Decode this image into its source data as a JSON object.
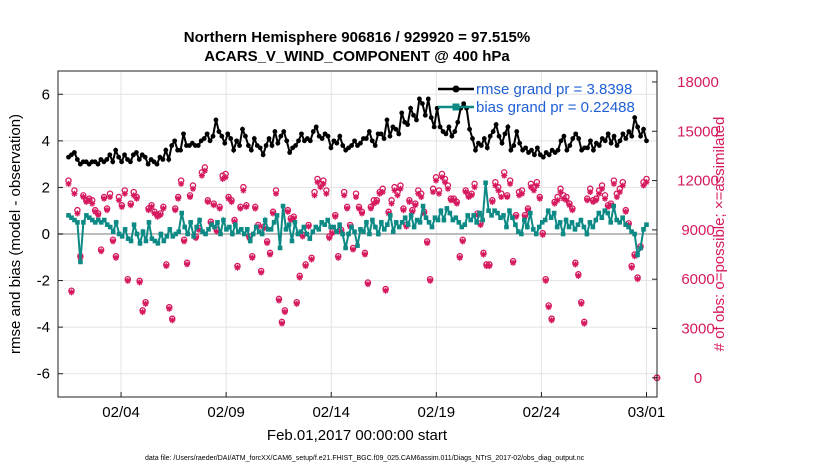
{
  "chart_data": {
    "type": "line",
    "title": "Northern Hemisphere 906816 / 929920 = 97.515%",
    "subtitle": "ACARS_V_WIND_COMPONENT @ 400 hPa",
    "xlabel": "Feb.01,2017 00:00:00 start",
    "ylabel_left": "rmse and bias (model - observation)",
    "ylabel_right": "# of obs: o=possible; ×=assimilated",
    "footnote": "data file: /Users/raeder/DAI/ATM_forcXX/CAM6_setup/f.e21.FHIST_BGC.f09_025.CAM6assim.011/Diags_NTrS_2017-02/obs_diag_output.nc",
    "x_tick_labels": [
      "02/04",
      "02/09",
      "02/14",
      "02/19",
      "02/24",
      "03/01"
    ],
    "x_tick_days": [
      3,
      8,
      13,
      18,
      23,
      28
    ],
    "xlim_days": [
      0,
      28.5
    ],
    "ylim_left": [
      -7,
      7
    ],
    "y_ticks_left": [
      -6,
      -4,
      -2,
      0,
      2,
      4,
      6
    ],
    "ylim_right": [
      -1167,
      18667
    ],
    "y_ticks_right": [
      0,
      3000,
      6000,
      9000,
      12000,
      15000,
      18000
    ],
    "grid": true,
    "legend_position": "top-right",
    "colors": {
      "rmse": "#000000",
      "bias": "#0d8a86",
      "obs": "#d6195f",
      "legend_text": "#1f5fd6",
      "zero_line": "#bdbdbd"
    },
    "series": [
      {
        "name": "rmse grand pr = 3.8398",
        "axis": "left",
        "marker": "filled-circle",
        "values": [
          3.3,
          3.4,
          3.5,
          3.2,
          3.0,
          3.1,
          3.1,
          3.0,
          3.1,
          3.1,
          3.0,
          3.2,
          3.1,
          3.2,
          3.4,
          3.1,
          3.6,
          3.3,
          3.1,
          3.4,
          3.2,
          3.1,
          3.4,
          3.5,
          3.2,
          3.4,
          3.3,
          3.0,
          3.2,
          3.1,
          3.0,
          3.3,
          3.2,
          3.6,
          3.2,
          3.8,
          4.0,
          3.6,
          3.6,
          4.3,
          3.8,
          3.8,
          3.9,
          3.8,
          3.8,
          4.0,
          4.1,
          4.3,
          4.0,
          4.2,
          4.9,
          4.4,
          4.2,
          3.9,
          4.3,
          4.1,
          3.6,
          4.0,
          3.8,
          4.5,
          4.2,
          3.8,
          3.6,
          4.1,
          3.8,
          3.7,
          3.4,
          3.8,
          4.1,
          3.8,
          4.4,
          3.9,
          4.2,
          4.4,
          4.0,
          3.5,
          3.7,
          3.8,
          4.0,
          4.3,
          4.0,
          4.1,
          4.0,
          4.4,
          4.6,
          4.2,
          4.1,
          4.3,
          4.2,
          3.7,
          4.0,
          3.9,
          4.2,
          3.8,
          3.6,
          3.7,
          3.8,
          4.0,
          3.8,
          3.9,
          4.1,
          4.1,
          4.4,
          4.0,
          3.8,
          4.3,
          4.3,
          4.1,
          4.9,
          4.2,
          4.6,
          4.5,
          4.3,
          5.2,
          4.8,
          4.7,
          5.4,
          5.1,
          4.9,
          5.8,
          5.6,
          5.1,
          5.8,
          5.0,
          4.6,
          5.4,
          4.6,
          4.4,
          4.3,
          4.6,
          4.2,
          4.4,
          4.8,
          5.4,
          5.6,
          5.4,
          4.5,
          4.1,
          3.6,
          3.9,
          3.8,
          4.1,
          3.7,
          4.2,
          4.4,
          4.7,
          4.2,
          3.9,
          4.3,
          4.6,
          3.6,
          3.8,
          4.4,
          3.9,
          3.6,
          3.7,
          3.5,
          3.6,
          3.4,
          3.7,
          3.4,
          3.3,
          3.5,
          3.4,
          3.6,
          3.5,
          3.6,
          4.0,
          4.2,
          3.6,
          3.8,
          4.1,
          4.3,
          4.1,
          3.6,
          3.7,
          3.7,
          4.0,
          3.6,
          3.9,
          3.8,
          4.1,
          4.0,
          4.3,
          3.9,
          4.2,
          3.8,
          4.0,
          4.3,
          4.1,
          4.4,
          4.2,
          5.0,
          4.6,
          4.2,
          4.5,
          4.0
        ]
      },
      {
        "name": "bias grand pr = 0.22488",
        "axis": "left",
        "marker": "filled-square",
        "values": [
          0.8,
          0.7,
          0.6,
          0.5,
          -1.2,
          0.5,
          0.8,
          0.7,
          0.6,
          0.5,
          0.6,
          0.5,
          0.6,
          0.4,
          0.3,
          0.1,
          0.5,
          0.0,
          -0.1,
          0.2,
          -0.2,
          -0.3,
          0.4,
          0.0,
          -0.4,
          0.1,
          -0.3,
          0.5,
          -0.2,
          -0.3,
          -0.4,
          0.0,
          -0.3,
          -0.1,
          0.2,
          -0.1,
          0.0,
          0.1,
          0.9,
          0.3,
          0.0,
          0.5,
          -0.1,
          0.3,
          0.6,
          0.1,
          0.0,
          0.2,
          0.4,
          0.3,
          0.5,
          0.0,
          0.6,
          0.2,
          0.3,
          0.0,
          0.4,
          0.1,
          0.2,
          0.0,
          0.2,
          -0.3,
          0.0,
          0.3,
          0.1,
          0.0,
          0.6,
          0.2,
          0.2,
          0.5,
          0.8,
          -0.6,
          1.2,
          0.2,
          0.4,
          -0.3,
          0.5,
          0.0,
          0.1,
          0.3,
          0.0,
          -0.2,
          0.1,
          0.3,
          0.2,
          0.5,
          0.4,
          0.6,
          0.3,
          0.3,
          0.1,
          0.4,
          0.0,
          -0.6,
          0.0,
          0.3,
          0.1,
          -0.5,
          0.2,
          0.1,
          0.5,
          0.0,
          0.6,
          0.3,
          0.0,
          0.5,
          0.2,
          0.4,
          0.8,
          0.1,
          0.5,
          0.3,
          0.5,
          0.7,
          0.4,
          0.8,
          0.3,
          0.6,
          0.5,
          1.2,
          0.7,
          0.5,
          0.3,
          0.7,
          0.6,
          1.0,
          0.6,
          1.1,
          0.9,
          0.6,
          0.7,
          0.5,
          0.3,
          0.4,
          0.8,
          0.6,
          0.8,
          0.5,
          0.9,
          0.6,
          2.2,
          1.0,
          0.8,
          1.0,
          0.9,
          0.7,
          0.8,
          0.3,
          1.0,
          0.7,
          0.4,
          0.1,
          0.0,
          0.6,
          0.3,
          0.9,
          0.2,
          0.0,
          0.3,
          0.5,
          0.6,
          1.0,
          0.7,
          0.9,
          0.3,
          0.5,
          0.0,
          0.6,
          0.3,
          0.5,
          0.2,
          0.4,
          0.6,
          0.3,
          0.0,
          0.5,
          0.3,
          0.6,
          0.9,
          0.7,
          1.0,
          0.9,
          0.5,
          1.2,
          0.6,
          0.5,
          0.7,
          0.4,
          0.3,
          0.1,
          0.0,
          -0.9,
          -0.6,
          0.2,
          0.4
        ]
      },
      {
        "name": "possible",
        "axis": "right",
        "marker": "circle",
        "values": [
          12000,
          5300,
          11400,
          10200,
          7400,
          11100,
          10800,
          10900,
          10800,
          10200,
          10000,
          7800,
          11000,
          10300,
          11200,
          8400,
          7400,
          11000,
          10500,
          11400,
          6000,
          10600,
          11300,
          11000,
          5900,
          4100,
          4600,
          10300,
          10500,
          10100,
          9900,
          10000,
          10400,
          6900,
          4300,
          3600,
          10300,
          11000,
          12000,
          8400,
          7000,
          11100,
          11700,
          8600,
          9100,
          12500,
          12800,
          10800,
          9500,
          10600,
          9000,
          10400,
          12300,
          12400,
          11000,
          10800,
          9600,
          6800,
          10400,
          11600,
          10500,
          8600,
          7400,
          10400,
          9300,
          6500,
          9200,
          8300,
          7600,
          10100,
          11400,
          4800,
          3400,
          4100,
          10200,
          9700,
          9800,
          4600,
          6200,
          8700,
          6900,
          9300,
          7300,
          11300,
          12100,
          11800,
          12000,
          11400,
          8600,
          8900,
          9900,
          7400,
          9000,
          11300,
          10400,
          9300,
          7900,
          11200,
          10400,
          10100,
          7600,
          5800,
          10400,
          10800,
          10800,
          11300,
          11500,
          5400,
          10100,
          10800,
          11600,
          11300,
          11700,
          10300,
          9300,
          10800,
          10200,
          10600,
          11400,
          11200,
          10100,
          8300,
          6000,
          11500,
          12200,
          11400,
          12400,
          12100,
          11700,
          10900,
          10900,
          10700,
          7400,
          8400,
          11400,
          11100,
          11200,
          11800,
          10000,
          9400,
          7600,
          6900,
          6900,
          10800,
          11900,
          11600,
          11200,
          12500,
          11100,
          12000,
          7100,
          9900,
          11300,
          11400,
          9900,
          10300,
          11800,
          11600,
          11900,
          11000,
          8800,
          6000,
          4400,
          3600,
          10700,
          11000,
          11500,
          11100,
          11000,
          10600,
          10300,
          7000,
          6300,
          4600,
          3400,
          10900,
          11500,
          10800,
          10900,
          11400,
          11700,
          11100,
          10500,
          10600,
          12000,
          11200,
          11500,
          11900,
          10200,
          9400,
          6800,
          7500,
          6100,
          8000,
          11900,
          12100
        ]
      },
      {
        "name": "assimilated",
        "axis": "right",
        "marker": "asterisk",
        "values": [
          11800,
          5200,
          11200,
          10000,
          7300,
          11000,
          10700,
          10800,
          10600,
          10100,
          9900,
          7700,
          10900,
          10200,
          11000,
          8300,
          7300,
          10800,
          10400,
          11200,
          5900,
          10500,
          11100,
          10900,
          5800,
          4000,
          4500,
          10200,
          10400,
          10000,
          9800,
          9900,
          10300,
          6800,
          4200,
          3500,
          10200,
          10900,
          11800,
          8300,
          6900,
          11000,
          11500,
          8500,
          9000,
          12300,
          12600,
          10700,
          9400,
          10500,
          8900,
          10300,
          12100,
          12200,
          10900,
          10700,
          9500,
          6700,
          10300,
          11400,
          10400,
          8500,
          7300,
          10300,
          9200,
          6400,
          9100,
          8200,
          7500,
          10000,
          11200,
          4700,
          3300,
          4000,
          10100,
          9600,
          9700,
          4500,
          6100,
          8600,
          6800,
          9200,
          7200,
          11100,
          11900,
          11600,
          11800,
          11200,
          8500,
          8800,
          9800,
          7300,
          8900,
          11100,
          10300,
          9200,
          7800,
          11000,
          10300,
          10000,
          7500,
          5700,
          10300,
          10600,
          10700,
          11200,
          11300,
          5300,
          10000,
          10600,
          11400,
          11100,
          11500,
          10200,
          9200,
          10700,
          10100,
          10500,
          11200,
          11000,
          10000,
          8200,
          5900,
          11300,
          12000,
          11200,
          12200,
          11900,
          11500,
          10800,
          10800,
          10600,
          7300,
          8300,
          11300,
          11000,
          11100,
          11600,
          9900,
          9300,
          7500,
          6800,
          6800,
          10700,
          11700,
          11400,
          11000,
          12300,
          11000,
          11800,
          7000,
          9800,
          11100,
          11200,
          9800,
          10200,
          11600,
          11400,
          11700,
          10900,
          8700,
          5900,
          4300,
          3500,
          10600,
          10800,
          11300,
          10900,
          10800,
          10500,
          10200,
          6900,
          6200,
          4500,
          3300,
          10800,
          11300,
          10700,
          10800,
          11200,
          11500,
          10900,
          10400,
          10500,
          11800,
          11000,
          11300,
          11700,
          10100,
          9300,
          6700,
          7400,
          6000,
          7900,
          11700,
          11900
        ]
      }
    ],
    "end_marker": {
      "day": 28.5,
      "value": 0
    }
  }
}
